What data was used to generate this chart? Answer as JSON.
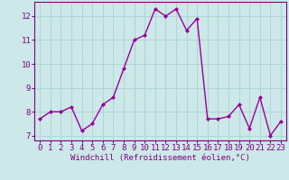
{
  "x": [
    0,
    1,
    2,
    3,
    4,
    5,
    6,
    7,
    8,
    9,
    10,
    11,
    12,
    13,
    14,
    15,
    16,
    17,
    18,
    19,
    20,
    21,
    22,
    23
  ],
  "y": [
    7.7,
    8.0,
    8.0,
    8.2,
    7.2,
    7.5,
    8.3,
    8.6,
    9.8,
    11.0,
    11.2,
    12.3,
    12.0,
    12.3,
    11.4,
    11.9,
    7.7,
    7.7,
    7.8,
    8.3,
    7.3,
    8.6,
    7.0,
    7.6
  ],
  "line_color": "#990099",
  "marker": "D",
  "marker_size": 2.0,
  "bg_color": "#cce8e8",
  "grid_color": "#b0d4d4",
  "xlabel": "Windchill (Refroidissement éolien,°C)",
  "xlim": [
    -0.5,
    23.5
  ],
  "ylim": [
    6.8,
    12.6
  ],
  "yticks": [
    7,
    8,
    9,
    10,
    11,
    12
  ],
  "xticks": [
    0,
    1,
    2,
    3,
    4,
    5,
    6,
    7,
    8,
    9,
    10,
    11,
    12,
    13,
    14,
    15,
    16,
    17,
    18,
    19,
    20,
    21,
    22,
    23
  ],
  "xlabel_fontsize": 6.5,
  "tick_fontsize": 6.5,
  "line_width": 1.0
}
